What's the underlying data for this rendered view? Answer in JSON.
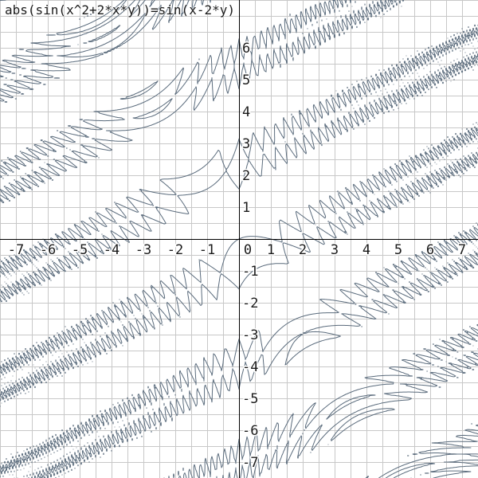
{
  "equation": "abs(sin(x^2+2*x*y))=sin(x-2*y)",
  "colors": {
    "curve": "#5a6b7c",
    "grid": "#c8c8c8",
    "axis": "#000000",
    "background": "#ffffff"
  },
  "chart_data": {
    "type": "implicit-curve",
    "title": "abs(sin(x^2+2*x*y))=sin(x-2*y)",
    "equation": "abs(sin(x^2+2*x*y))=sin(x-2*y)",
    "xlim": [
      -7.5,
      7.5
    ],
    "ylim": [
      -7.5,
      7.5
    ],
    "grid": true,
    "grid_step": 0.5,
    "x_ticks": [
      -7,
      -6,
      -5,
      -4,
      -3,
      -2,
      -1,
      0,
      1,
      2,
      3,
      4,
      5,
      6,
      7
    ],
    "x_tick_labels": [
      "-7",
      "-6",
      "-5",
      "-4",
      "-3",
      "-2",
      "-1",
      "0",
      "1",
      "2",
      "3",
      "4",
      "5",
      "6",
      "7"
    ],
    "y_ticks": [
      6,
      5,
      4,
      3,
      2,
      1,
      -1,
      -2,
      -3,
      -4,
      -5,
      -6,
      -7
    ],
    "y_tick_labels": [
      "6",
      "5",
      "4",
      "3",
      "2",
      "1",
      "-1",
      "-2",
      "-3",
      "-4",
      "-5",
      "-6",
      "-7"
    ]
  }
}
